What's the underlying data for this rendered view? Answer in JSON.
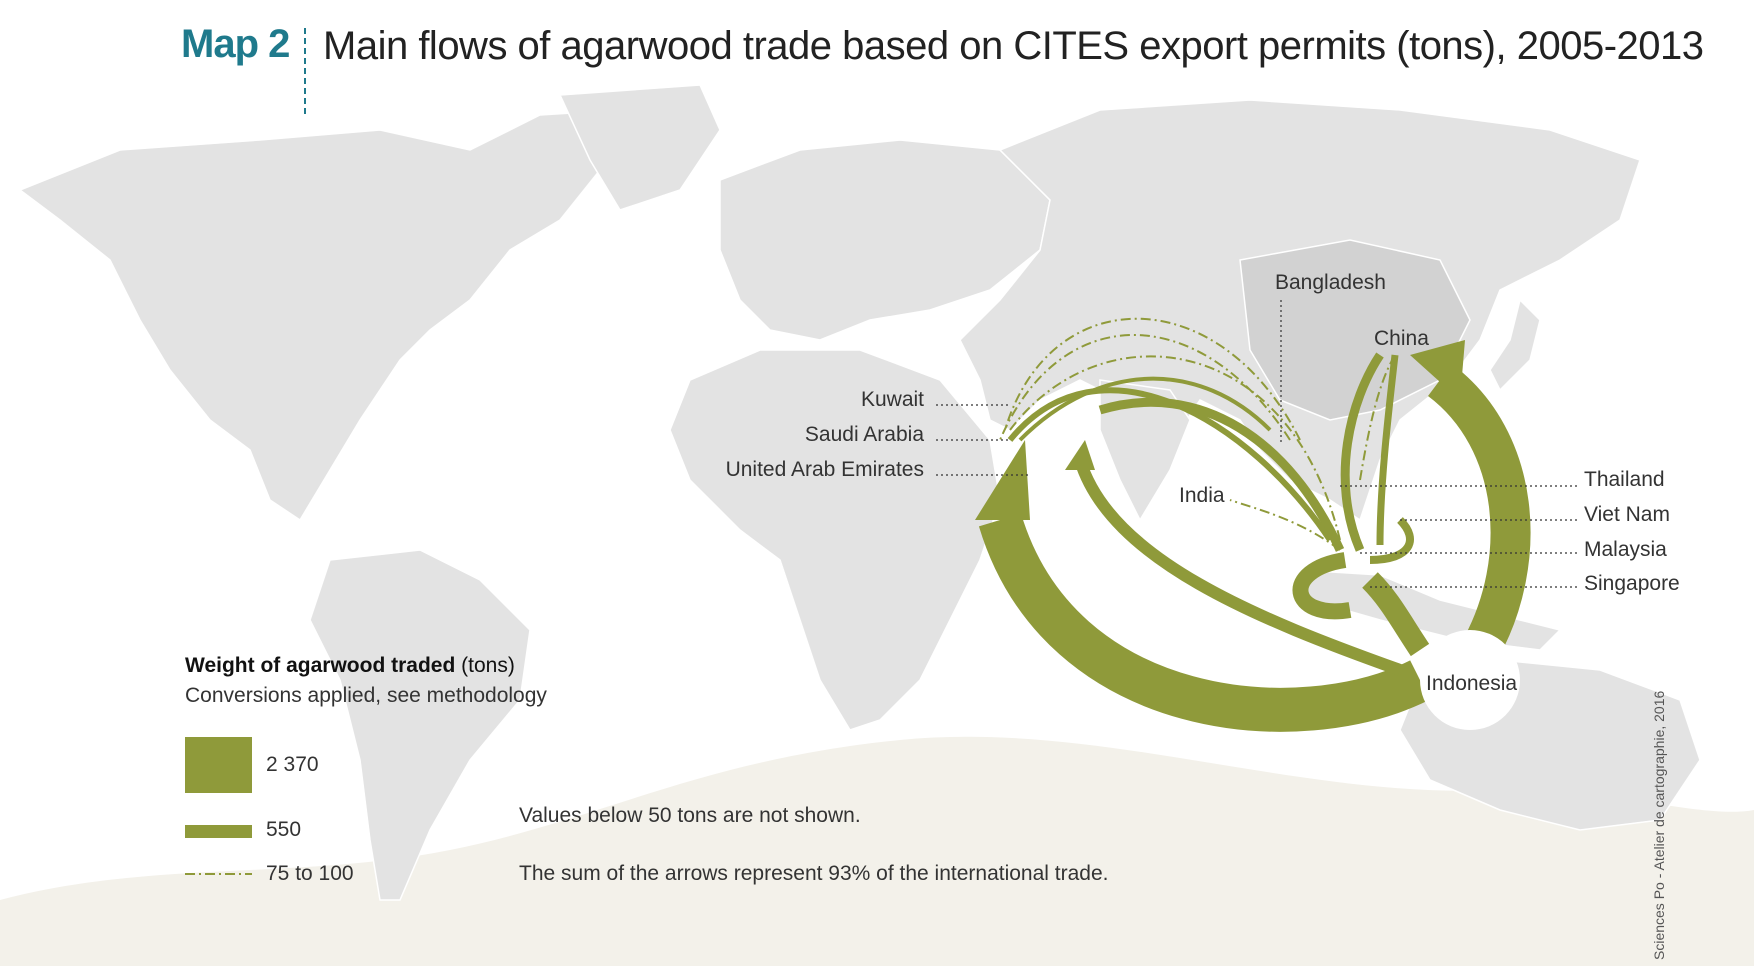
{
  "header": {
    "map_label": "Map 2",
    "title": "Main flows of agarwood trade based on CITES export permits (tons), 2005-2013"
  },
  "countries": {
    "bangladesh": "Bangladesh",
    "china": "China",
    "kuwait": "Kuwait",
    "saudi_arabia": "Saudi Arabia",
    "uae": "United Arab Emirates",
    "india": "India",
    "thailand": "Thailand",
    "viet_nam": "Viet Nam",
    "malaysia": "Malaysia",
    "singapore": "Singapore",
    "indonesia": "Indonesia"
  },
  "legend": {
    "title_bold": "Weight of agarwood traded",
    "title_unit": " (tons)",
    "subtitle": "Conversions applied, see methodology",
    "items": [
      {
        "label": "2 370",
        "style": "thick"
      },
      {
        "label": "550",
        "style": "medium"
      },
      {
        "label": "75 to 100",
        "style": "dashed"
      }
    ]
  },
  "notes": {
    "threshold": "Values below 50 tons are not shown.",
    "coverage": "The sum of the arrows represent 93% of the international trade."
  },
  "credit": "Sciences Po - Atelier de cartographie, 2016",
  "colors": {
    "flow": "#8f9a3a",
    "land": "#e3e3e3",
    "land_highlight": "#d2d2d2",
    "accent": "#1f7a8c"
  }
}
